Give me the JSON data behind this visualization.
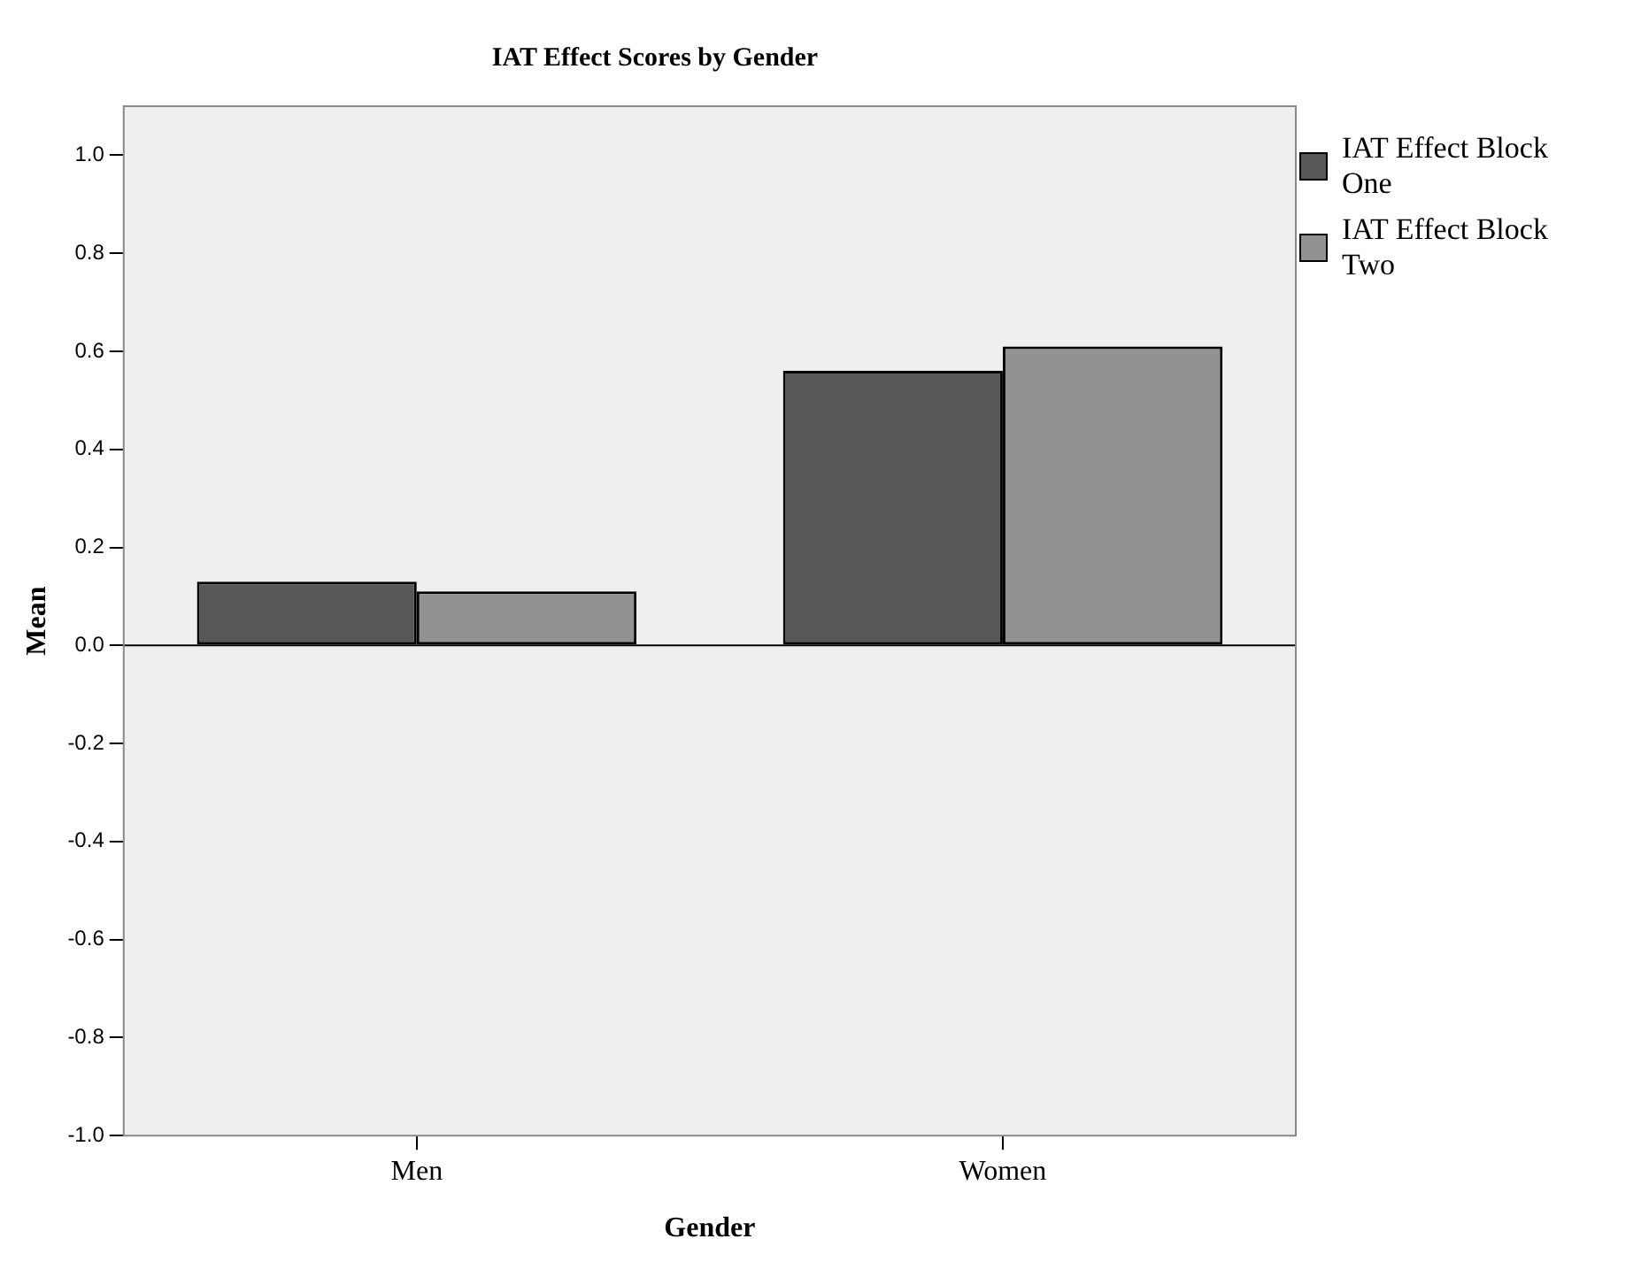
{
  "chart_data": {
    "type": "bar",
    "title": "IAT Effect Scores by Gender",
    "xlabel": "Gender",
    "ylabel": "Mean",
    "categories": [
      "Men",
      "Women"
    ],
    "series": [
      {
        "name": "IAT Effect Block One",
        "color": "#575757",
        "values": [
          0.13,
          0.56
        ]
      },
      {
        "name": "IAT Effect Block Two",
        "color": "#929292",
        "values": [
          0.11,
          0.61
        ]
      }
    ],
    "ylim": [
      -1,
      1.1
    ],
    "yticks": [
      {
        "value": -1,
        "label": "-1.0"
      },
      -0.8,
      -0.6,
      -0.4,
      -0.2,
      {
        "value": 0,
        "label": "0.0"
      },
      0.2,
      0.4,
      0.6,
      0.8,
      {
        "value": 1,
        "label": "1.0"
      }
    ],
    "ref_lines": [
      {
        "axis": "y",
        "value": 0,
        "color": "#000000"
      }
    ],
    "grid": false,
    "legend": "top right"
  }
}
